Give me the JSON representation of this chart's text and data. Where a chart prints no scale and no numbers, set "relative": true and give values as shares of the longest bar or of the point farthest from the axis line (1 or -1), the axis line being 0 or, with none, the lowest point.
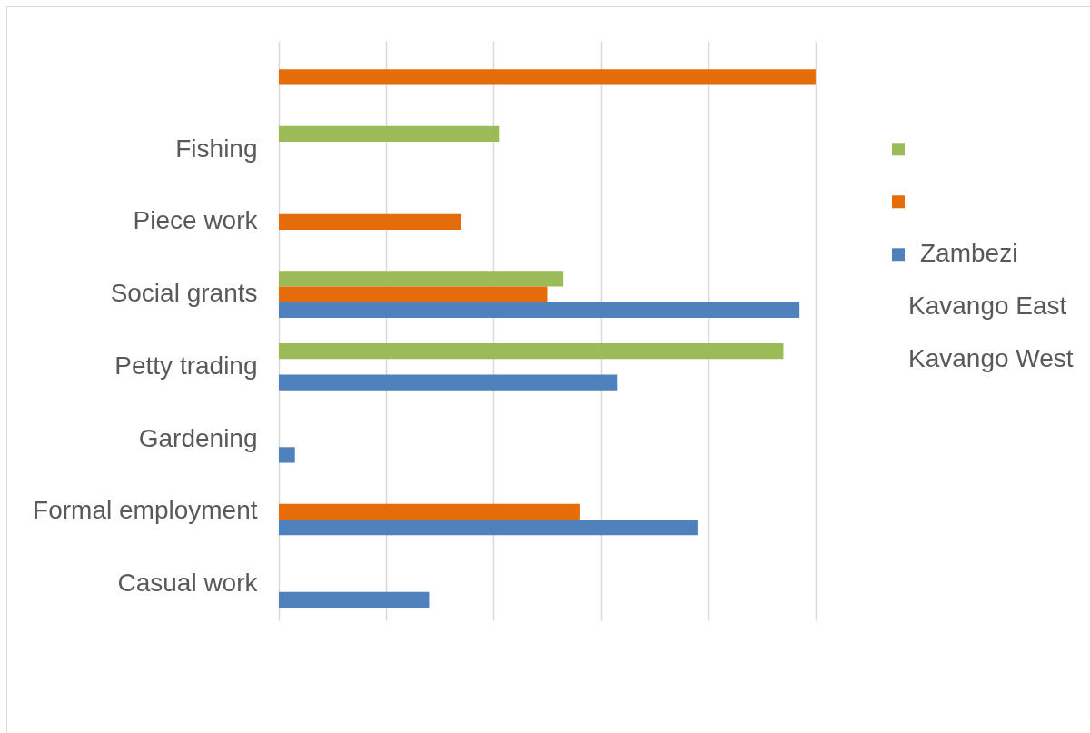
{
  "chart_data": {
    "type": "bar",
    "orientation": "horizontal",
    "relative": true,
    "categories": [
      null,
      "Fishing",
      "Piece work",
      "Social grants",
      "Petty trading",
      "Gardening",
      "Formal employment",
      "Casual work"
    ],
    "series": [
      {
        "color": "#9bbb59",
        "values": [
          null,
          0.41,
          null,
          0.53,
          0.94,
          null,
          null,
          null
        ]
      },
      {
        "color": "#e46c0a",
        "values": [
          1,
          null,
          0.34,
          0.5,
          null,
          null,
          0.56,
          null
        ]
      },
      {
        "name": "Zambezi",
        "color": "#4f81bd",
        "values": [
          null,
          null,
          null,
          0.97,
          0.63,
          0.03,
          0.78,
          0.28
        ]
      }
    ],
    "grid": "x",
    "legend": "right",
    "annotations": [
      "Kavango East",
      "Kavango West"
    ]
  }
}
